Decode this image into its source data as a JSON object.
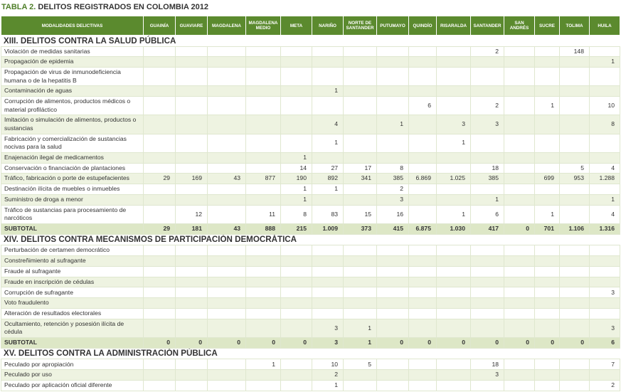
{
  "header": {
    "label": "TABLA 2.",
    "title": "DELITOS REGISTRADOS EN COLOMBIA 2012"
  },
  "table": {
    "columns": [
      "MODALIDADES DELICTIVAS",
      "GUAINÍA",
      "GUAVIARE",
      "MAGDALENA",
      "MAGDALENA MEDIO",
      "META",
      "NARIÑO",
      "NORTE DE SANTANDER",
      "PUTUMAYO",
      "QUINDÍO",
      "RISARALDA",
      "SANTANDER",
      "SAN ANDRÉS",
      "SUCRE",
      "TOLIMA",
      "HUILA"
    ],
    "sections": [
      {
        "title": "XIII. DELITOS CONTRA LA SALUD PÚBLICA",
        "rows": [
          [
            "Violación de medidas sanitarias",
            null,
            null,
            null,
            null,
            null,
            null,
            null,
            null,
            null,
            null,
            "2",
            null,
            null,
            "148",
            null
          ],
          [
            "Propagación de epidemia",
            null,
            null,
            null,
            null,
            null,
            null,
            null,
            null,
            null,
            null,
            null,
            null,
            null,
            null,
            "1"
          ],
          [
            "Propagación de virus de inmunodeficiencia humana o de la hepatitis B",
            null,
            null,
            null,
            null,
            null,
            null,
            null,
            null,
            null,
            null,
            null,
            null,
            null,
            null,
            null
          ],
          [
            "Contaminación de aguas",
            null,
            null,
            null,
            null,
            null,
            "1",
            null,
            null,
            null,
            null,
            null,
            null,
            null,
            null,
            null
          ],
          [
            "Corrupción de alimentos, productos médicos o material profiláctico",
            null,
            null,
            null,
            null,
            null,
            null,
            null,
            null,
            "6",
            null,
            "2",
            null,
            "1",
            null,
            "10"
          ],
          [
            "Imitación o simulación de alimentos, productos o sustancias",
            null,
            null,
            null,
            null,
            null,
            "4",
            null,
            "1",
            null,
            "3",
            "3",
            null,
            null,
            null,
            "8"
          ],
          [
            "Fabricación y comercialización de sustancias nocivas para la salud",
            null,
            null,
            null,
            null,
            null,
            "1",
            null,
            null,
            null,
            "1",
            null,
            null,
            null,
            null,
            null
          ],
          [
            "Enajenación ilegal de medicamentos",
            null,
            null,
            null,
            null,
            "1",
            null,
            null,
            null,
            null,
            null,
            null,
            null,
            null,
            null,
            null
          ],
          [
            "Conservación o financiación de plantaciones",
            null,
            null,
            null,
            null,
            "14",
            "27",
            "17",
            "8",
            null,
            null,
            "18",
            null,
            null,
            "5",
            "4"
          ],
          [
            "Tráfico, fabricación o porte de estupefacientes",
            "29",
            "169",
            "43",
            "877",
            "190",
            "892",
            "341",
            "385",
            "6.869",
            "1.025",
            "385",
            null,
            "699",
            "953",
            "1.288"
          ],
          [
            "Destinación ilícita de muebles o inmuebles",
            null,
            null,
            null,
            null,
            "1",
            "1",
            null,
            "2",
            null,
            null,
            null,
            null,
            null,
            null,
            null
          ],
          [
            "Suministro de droga a menor",
            null,
            null,
            null,
            null,
            "1",
            null,
            null,
            "3",
            null,
            null,
            "1",
            null,
            null,
            null,
            "1"
          ],
          [
            "Tráfico de sustancias para procesamiento de narcóticos",
            null,
            "12",
            null,
            "11",
            "8",
            "83",
            "15",
            "16",
            null,
            "1",
            "6",
            null,
            "1",
            null,
            "4"
          ]
        ],
        "subtotal": [
          "SUBTOTAL",
          "29",
          "181",
          "43",
          "888",
          "215",
          "1.009",
          "373",
          "415",
          "6.875",
          "1.030",
          "417",
          "0",
          "701",
          "1.106",
          "1.316"
        ]
      },
      {
        "title": "XIV. DELITOS CONTRA MECANISMOS DE PARTICIPACIÓN DEMOCRÁTICA",
        "rows": [
          [
            "Perturbación de certamen democrático",
            null,
            null,
            null,
            null,
            null,
            null,
            null,
            null,
            null,
            null,
            null,
            null,
            null,
            null,
            null
          ],
          [
            "Constreñimiento al sufragante",
            null,
            null,
            null,
            null,
            null,
            null,
            null,
            null,
            null,
            null,
            null,
            null,
            null,
            null,
            null
          ],
          [
            "Fraude al sufragante",
            null,
            null,
            null,
            null,
            null,
            null,
            null,
            null,
            null,
            null,
            null,
            null,
            null,
            null,
            null
          ],
          [
            "Fraude en inscripción de cédulas",
            null,
            null,
            null,
            null,
            null,
            null,
            null,
            null,
            null,
            null,
            null,
            null,
            null,
            null,
            null
          ],
          [
            "Corrupción de sufragante",
            null,
            null,
            null,
            null,
            null,
            null,
            null,
            null,
            null,
            null,
            null,
            null,
            null,
            null,
            "3"
          ],
          [
            "Voto fraudulento",
            null,
            null,
            null,
            null,
            null,
            null,
            null,
            null,
            null,
            null,
            null,
            null,
            null,
            null,
            null
          ],
          [
            "Alteración de resultados electorales",
            null,
            null,
            null,
            null,
            null,
            null,
            null,
            null,
            null,
            null,
            null,
            null,
            null,
            null,
            null
          ],
          [
            "Ocultamiento, retención y posesión ilícita de cédula",
            null,
            null,
            null,
            null,
            null,
            "3",
            "1",
            null,
            null,
            null,
            null,
            null,
            null,
            null,
            "3"
          ]
        ],
        "subtotal": [
          "SUBTOTAL",
          "0",
          "0",
          "0",
          "0",
          "0",
          "3",
          "1",
          "0",
          "0",
          "0",
          "0",
          "0",
          "0",
          "0",
          "6"
        ]
      },
      {
        "title": "XV. DELITOS CONTRA LA ADMINISTRACIÓN PÚBLICA",
        "rows": [
          [
            "Peculado por apropiación",
            null,
            null,
            null,
            "1",
            null,
            "10",
            "5",
            null,
            null,
            null,
            "18",
            null,
            null,
            null,
            "7"
          ],
          [
            "Peculado por uso",
            null,
            null,
            null,
            null,
            null,
            "2",
            null,
            null,
            null,
            null,
            "3",
            null,
            null,
            null,
            null
          ],
          [
            "Peculado por aplicación oficial diferente",
            null,
            null,
            null,
            null,
            null,
            "1",
            null,
            null,
            null,
            null,
            null,
            null,
            null,
            null,
            "2"
          ]
        ]
      }
    ]
  }
}
